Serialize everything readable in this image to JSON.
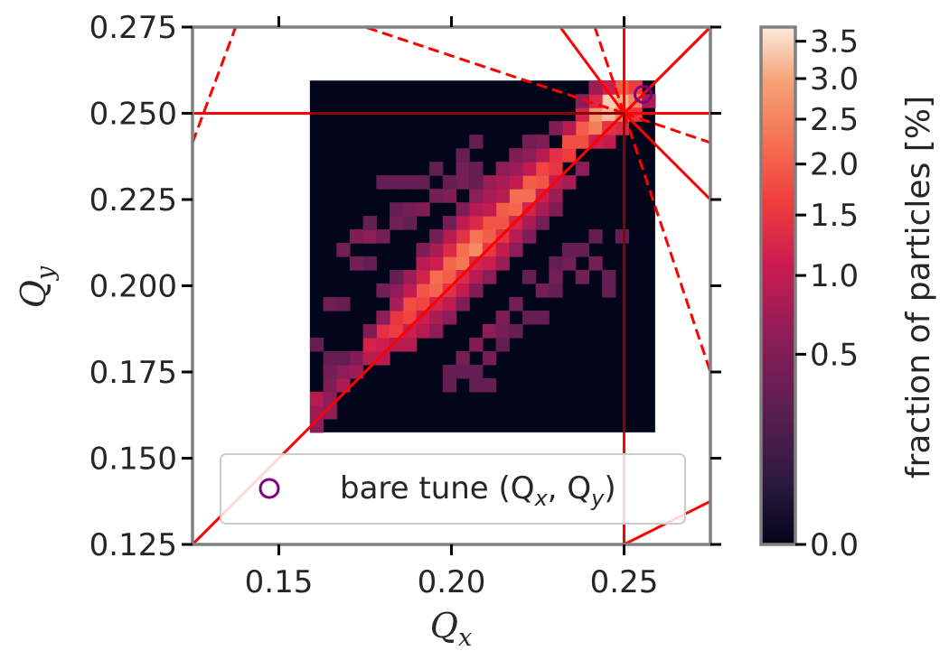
{
  "chart_data": {
    "type": "heatmap",
    "title": "",
    "xlabel": "Q",
    "xlabel_sub": "x",
    "ylabel": "Q",
    "ylabel_sub": "y",
    "xlim": [
      0.125,
      0.275
    ],
    "ylim": [
      0.125,
      0.275
    ],
    "xticks": [
      0.15,
      0.2,
      0.25
    ],
    "xtick_labels": [
      "0.15",
      "0.20",
      "0.25"
    ],
    "yticks": [
      0.125,
      0.15,
      0.175,
      0.2,
      0.225,
      0.25,
      0.275
    ],
    "ytick_labels": [
      "0.125",
      "0.150",
      "0.175",
      "0.200",
      "0.225",
      "0.250",
      "0.275"
    ],
    "grid": false,
    "heatmap": {
      "x_range": [
        0.159,
        0.259
      ],
      "y_range": [
        0.1575,
        0.2595
      ],
      "nx": 26,
      "ny": 26,
      "background_value": 0.0,
      "cells": [
        [
          0,
          1,
          0.7
        ],
        [
          0,
          2,
          0.9
        ],
        [
          1,
          2,
          0.6
        ],
        [
          1,
          3,
          0.5
        ],
        [
          2,
          3,
          0.8
        ],
        [
          2,
          4,
          0.6
        ],
        [
          3,
          4,
          0.7
        ],
        [
          1,
          4,
          0.4
        ],
        [
          3,
          5,
          0.5
        ],
        [
          2,
          5,
          0.3
        ],
        [
          1,
          5,
          0.3
        ],
        [
          0,
          6,
          0.3
        ],
        [
          4,
          5,
          0.9
        ],
        [
          4,
          6,
          1.2
        ],
        [
          5,
          6,
          1.1
        ],
        [
          5,
          7,
          1.4
        ],
        [
          6,
          7,
          1.6
        ],
        [
          6,
          8,
          1.5
        ],
        [
          7,
          8,
          1.7
        ],
        [
          7,
          9,
          1.8
        ],
        [
          8,
          9,
          1.7
        ],
        [
          8,
          10,
          1.9
        ],
        [
          9,
          10,
          2.1
        ],
        [
          9,
          11,
          2.2
        ],
        [
          10,
          11,
          2.0
        ],
        [
          10,
          12,
          2.1
        ],
        [
          11,
          12,
          2.3
        ],
        [
          11,
          13,
          2.2
        ],
        [
          12,
          13,
          2.6
        ],
        [
          12,
          14,
          2.3
        ],
        [
          13,
          14,
          2.0
        ],
        [
          13,
          15,
          1.9
        ],
        [
          14,
          15,
          1.9
        ],
        [
          14,
          16,
          2.0
        ],
        [
          15,
          16,
          2.1
        ],
        [
          15,
          17,
          2.2
        ],
        [
          16,
          17,
          2.2
        ],
        [
          16,
          18,
          2.0
        ],
        [
          17,
          18,
          1.9
        ],
        [
          17,
          19,
          1.7
        ],
        [
          18,
          19,
          1.5
        ],
        [
          18,
          20,
          1.4
        ],
        [
          19,
          20,
          1.6
        ],
        [
          19,
          21,
          1.8
        ],
        [
          20,
          21,
          1.8
        ],
        [
          20,
          22,
          2.0
        ],
        [
          21,
          22,
          2.4
        ],
        [
          21,
          23,
          2.8
        ],
        [
          22,
          23,
          3.2
        ],
        [
          22,
          24,
          3.4
        ],
        [
          23,
          24,
          3.1
        ],
        [
          23,
          25,
          2.0
        ],
        [
          24,
          25,
          1.6
        ],
        [
          24,
          24,
          2.5
        ],
        [
          21,
          24,
          1.3
        ],
        [
          20,
          23,
          1.2
        ],
        [
          19,
          22,
          0.9
        ],
        [
          22,
          25,
          1.1
        ],
        [
          23,
          22,
          1.3
        ],
        [
          24,
          23,
          1.5
        ],
        [
          25,
          24,
          0.8
        ],
        [
          20,
          24,
          0.6
        ],
        [
          21,
          25,
          0.7
        ],
        [
          22,
          21,
          1.0
        ],
        [
          5,
          5,
          0.9
        ],
        [
          6,
          6,
          0.9
        ],
        [
          7,
          7,
          1.1
        ],
        [
          8,
          8,
          1.1
        ],
        [
          9,
          9,
          1.2
        ],
        [
          10,
          10,
          1.4
        ],
        [
          11,
          11,
          1.3
        ],
        [
          12,
          12,
          1.2
        ],
        [
          13,
          13,
          1.5
        ],
        [
          14,
          14,
          1.4
        ],
        [
          15,
          15,
          1.2
        ],
        [
          16,
          16,
          1.2
        ],
        [
          17,
          17,
          1.1
        ],
        [
          18,
          18,
          1.0
        ],
        [
          6,
          9,
          0.8
        ],
        [
          7,
          10,
          1.0
        ],
        [
          8,
          11,
          1.2
        ],
        [
          9,
          12,
          1.1
        ],
        [
          10,
          13,
          1.3
        ],
        [
          11,
          14,
          1.4
        ],
        [
          12,
          15,
          1.3
        ],
        [
          13,
          16,
          1.0
        ],
        [
          14,
          17,
          0.9
        ],
        [
          15,
          18,
          1.0
        ],
        [
          16,
          19,
          1.0
        ],
        [
          17,
          20,
          0.9
        ],
        [
          5,
          8,
          0.6
        ],
        [
          4,
          7,
          0.5
        ],
        [
          7,
          6,
          0.9
        ],
        [
          8,
          7,
          0.9
        ],
        [
          9,
          8,
          0.8
        ],
        [
          10,
          9,
          1.0
        ],
        [
          11,
          10,
          1.0
        ],
        [
          12,
          11,
          0.9
        ],
        [
          13,
          12,
          1.1
        ],
        [
          14,
          13,
          1.0
        ],
        [
          15,
          14,
          0.9
        ],
        [
          16,
          15,
          0.8
        ],
        [
          17,
          16,
          0.8
        ],
        [
          18,
          17,
          0.7
        ],
        [
          19,
          18,
          0.8
        ],
        [
          20,
          19,
          0.6
        ],
        [
          18,
          16,
          0.5
        ],
        [
          17,
          15,
          0.4
        ],
        [
          16,
          14,
          0.5
        ],
        [
          15,
          13,
          0.6
        ],
        [
          14,
          12,
          0.7
        ],
        [
          9,
          7,
          0.6
        ],
        [
          10,
          8,
          0.6
        ],
        [
          11,
          9,
          0.5
        ],
        [
          12,
          10,
          0.5
        ],
        [
          13,
          11,
          0.6
        ],
        [
          8,
          12,
          0.9
        ],
        [
          9,
          13,
          0.8
        ],
        [
          10,
          14,
          0.9
        ],
        [
          11,
          15,
          1.0
        ],
        [
          12,
          16,
          0.9
        ],
        [
          13,
          17,
          0.8
        ],
        [
          14,
          18,
          0.8
        ],
        [
          15,
          19,
          0.7
        ],
        [
          16,
          20,
          0.6
        ],
        [
          17,
          21,
          0.5
        ],
        [
          18,
          22,
          0.5
        ],
        [
          10,
          15,
          0.4
        ],
        [
          11,
          16,
          0.5
        ],
        [
          12,
          17,
          0.6
        ],
        [
          13,
          18,
          0.7
        ],
        [
          14,
          19,
          0.6
        ],
        [
          15,
          20,
          0.5
        ],
        [
          16,
          21,
          0.4
        ],
        [
          8,
          13,
          0.5
        ],
        [
          9,
          14,
          0.4
        ],
        [
          6,
          10,
          0.6
        ],
        [
          7,
          11,
          0.7
        ],
        [
          5,
          10,
          0.4
        ],
        [
          6,
          11,
          0.3
        ],
        [
          3,
          12,
          0.4
        ],
        [
          4,
          12,
          0.3
        ],
        [
          2,
          13,
          0.4
        ],
        [
          3,
          14,
          0.5
        ],
        [
          4,
          14,
          0.6
        ],
        [
          5,
          14,
          0.4
        ],
        [
          4,
          15,
          0.3
        ],
        [
          6,
          15,
          0.4
        ],
        [
          7,
          15,
          0.3
        ],
        [
          6,
          16,
          0.3
        ],
        [
          7,
          16,
          0.4
        ],
        [
          8,
          16,
          0.5
        ],
        [
          9,
          17,
          0.4
        ],
        [
          10,
          17,
          0.5
        ],
        [
          11,
          18,
          0.4
        ],
        [
          12,
          18,
          0.3
        ],
        [
          10,
          18,
          0.3
        ],
        [
          11,
          19,
          0.4
        ],
        [
          12,
          19,
          0.3
        ],
        [
          9,
          19,
          0.3
        ],
        [
          8,
          18,
          0.3
        ],
        [
          7,
          18,
          0.3
        ],
        [
          6,
          18,
          0.3
        ],
        [
          5,
          18,
          0.3
        ],
        [
          11,
          20,
          0.3
        ],
        [
          1,
          9,
          0.4
        ],
        [
          2,
          9,
          0.3
        ],
        [
          12,
          21,
          0.3
        ],
        [
          20,
          13,
          0.3
        ],
        [
          21,
          12,
          0.4
        ],
        [
          22,
          11,
          0.3
        ],
        [
          19,
          12,
          0.4
        ],
        [
          18,
          11,
          0.4
        ],
        [
          17,
          10,
          0.4
        ],
        [
          18,
          10,
          0.3
        ],
        [
          16,
          11,
          0.3
        ],
        [
          15,
          9,
          0.4
        ],
        [
          14,
          8,
          0.5
        ],
        [
          13,
          7,
          0.6
        ],
        [
          14,
          7,
          0.4
        ],
        [
          15,
          7,
          0.3
        ],
        [
          16,
          8,
          0.3
        ],
        [
          17,
          8,
          0.3
        ],
        [
          12,
          6,
          0.5
        ],
        [
          11,
          5,
          0.4
        ],
        [
          11,
          4,
          0.3
        ],
        [
          12,
          4,
          0.3
        ],
        [
          13,
          5,
          0.4
        ],
        [
          12,
          3,
          0.3
        ],
        [
          13,
          3,
          0.3
        ],
        [
          10,
          4,
          0.3
        ],
        [
          10,
          3,
          0.3
        ],
        [
          14,
          6,
          0.3
        ],
        [
          18,
          12,
          0.3
        ],
        [
          20,
          11,
          0.4
        ],
        [
          19,
          13,
          0.3
        ],
        [
          21,
          14,
          0.3
        ],
        [
          22,
          10,
          0.3
        ],
        [
          23,
          14,
          0.3
        ],
        [
          0,
          0,
          0.6
        ],
        [
          1,
          1,
          0.6
        ],
        [
          0,
          1,
          0.5
        ],
        [
          23,
          23,
          2.5
        ],
        [
          22,
          22,
          1.4
        ],
        [
          24,
          23,
          1.0
        ],
        [
          21,
          21,
          1.1
        ]
      ]
    },
    "colorbar": {
      "label": "fraction of particles [%]",
      "ticks": [
        0.0,
        0.5,
        1.0,
        1.5,
        2.0,
        2.5,
        3.0,
        3.5
      ],
      "tick_labels": [
        "0.0",
        "0.5",
        "1.0",
        "1.5",
        "2.0",
        "2.5",
        "3.0",
        "3.5"
      ],
      "range": [
        0.0,
        3.7
      ],
      "scale": "nonlinear (sqrt-like)",
      "colormap": "rocket"
    },
    "resonance_lines": {
      "color": "#ff0000",
      "dark_overlay_color": "#8b0000",
      "solid": [
        {
          "from": [
            0.125,
            0.125
          ],
          "to": [
            0.275,
            0.275
          ]
        },
        {
          "from": [
            0.125,
            0.25
          ],
          "to": [
            0.275,
            0.25
          ]
        },
        {
          "from": [
            0.25,
            0.125
          ],
          "to": [
            0.25,
            0.275
          ]
        },
        {
          "from": [
            0.25,
            0.25
          ],
          "to": [
            0.275,
            0.275
          ]
        },
        {
          "from": [
            0.25,
            0.25
          ],
          "to": [
            0.2315,
            0.275
          ]
        },
        {
          "from": [
            0.25,
            0.25
          ],
          "to": [
            0.275,
            0.225
          ]
        },
        {
          "from": [
            0.25,
            0.125
          ],
          "to": [
            0.275,
            0.1375
          ]
        }
      ],
      "dashed": [
        {
          "from": [
            0.125,
            0.2415
          ],
          "to": [
            0.1375,
            0.275
          ]
        },
        {
          "from": [
            0.25,
            0.25
          ],
          "to": [
            0.175,
            0.275
          ]
        },
        {
          "from": [
            0.25,
            0.25
          ],
          "to": [
            0.275,
            0.175
          ]
        },
        {
          "from": [
            0.25,
            0.25
          ],
          "to": [
            0.275,
            0.2415
          ]
        },
        {
          "from": [
            0.25,
            0.25
          ],
          "to": [
            0.2415,
            0.275
          ]
        }
      ]
    },
    "bare_tune": {
      "x": 0.2555,
      "y": 0.2555,
      "color": "#800080"
    },
    "legend": {
      "placement": "lower-right",
      "entries": [
        {
          "label": "bare tune (Q",
          "label_sub_x": "x",
          "label_mid": ", Q",
          "label_sub_y": "y",
          "label_end": ")"
        }
      ]
    },
    "frame_color": "#808080"
  }
}
